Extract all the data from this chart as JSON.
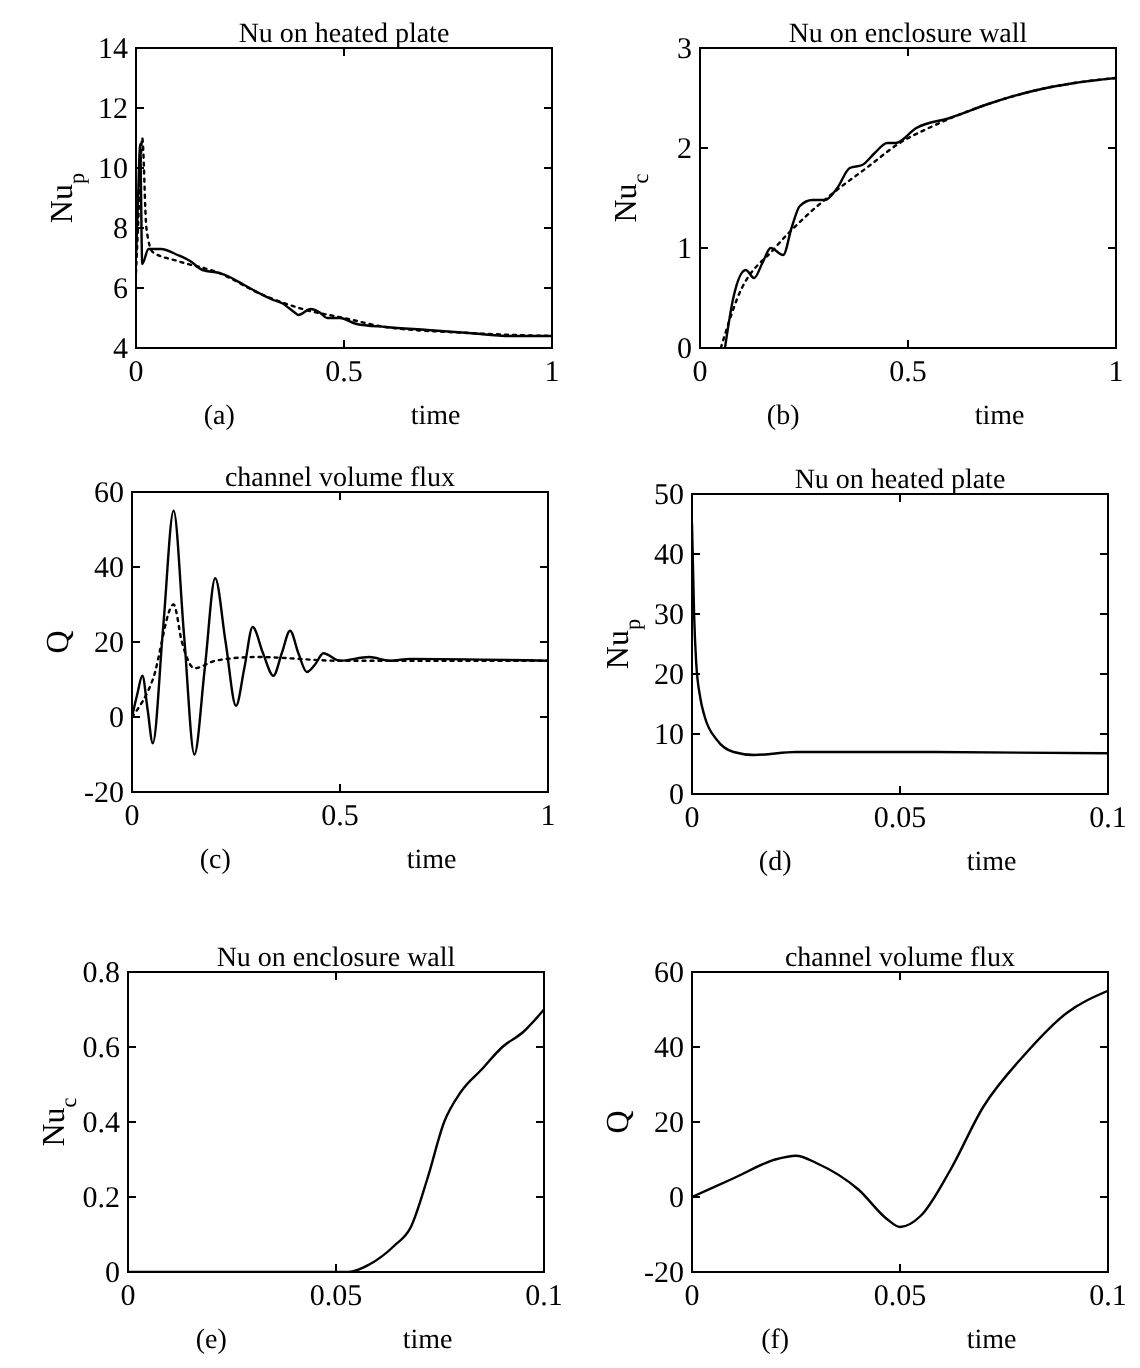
{
  "chart_data": [
    {
      "type": "line",
      "title": "Nu on heated plate",
      "xlabel": "time",
      "ylabel": "Nu$_{p}$",
      "annotations": [
        "(a)"
      ],
      "xlim": [
        0,
        1
      ],
      "ylim": [
        4,
        14
      ],
      "xticks": [
        0,
        0.5,
        1
      ],
      "yticks": [
        4,
        6,
        8,
        10,
        12,
        14
      ],
      "series": [
        {
          "color": "#000000",
          "line_style": "solid",
          "x": [
            0,
            0.005,
            0.01,
            0.015,
            0.03,
            0.06,
            0.1,
            0.13,
            0.16,
            0.2,
            0.22,
            0.26,
            0.3,
            0.33,
            0.35,
            0.38,
            0.39,
            0.42,
            0.44,
            0.46,
            0.49,
            0.53,
            0.6,
            0.7,
            0.8,
            0.9,
            1
          ],
          "values": [
            7,
            9,
            10.8,
            6.8,
            7.3,
            7.3,
            7.1,
            6.9,
            6.6,
            6.5,
            6.4,
            6.1,
            5.8,
            5.6,
            5.5,
            5.2,
            5.1,
            5.3,
            5.2,
            5.0,
            5.0,
            4.8,
            4.7,
            4.6,
            4.5,
            4.4,
            4.4
          ]
        },
        {
          "color": "#000000",
          "line_style": "dotted",
          "x": [
            0,
            0.008,
            0.015,
            0.025,
            0.04,
            0.1,
            0.2,
            0.3,
            0.4,
            0.5,
            0.6,
            0.8,
            1
          ],
          "values": [
            6.5,
            9,
            11,
            8,
            7.2,
            6.9,
            6.5,
            5.8,
            5.3,
            5.0,
            4.7,
            4.5,
            4.4
          ]
        }
      ]
    },
    {
      "type": "line",
      "title": "Nu on enclosure wall",
      "xlabel": "time",
      "ylabel": "Nu$_{c}$",
      "annotations": [
        "(b)"
      ],
      "xlim": [
        0,
        1
      ],
      "ylim": [
        0,
        3
      ],
      "xticks": [
        0,
        0.5,
        1
      ],
      "yticks": [
        0,
        1,
        2,
        3
      ],
      "series": [
        {
          "color": "#000000",
          "line_style": "solid",
          "x": [
            0.06,
            0.08,
            0.11,
            0.13,
            0.15,
            0.17,
            0.2,
            0.22,
            0.24,
            0.27,
            0.3,
            0.33,
            0.36,
            0.39,
            0.42,
            0.45,
            0.47,
            0.52,
            0.6,
            0.7,
            0.8,
            0.9,
            1
          ],
          "values": [
            0,
            0.5,
            0.78,
            0.7,
            0.85,
            1.0,
            0.93,
            1.2,
            1.42,
            1.48,
            1.48,
            1.6,
            1.8,
            1.83,
            1.95,
            2.05,
            2.05,
            2.2,
            2.3,
            2.45,
            2.57,
            2.65,
            2.7
          ]
        },
        {
          "color": "#000000",
          "line_style": "dotted",
          "x": [
            0.05,
            0.09,
            0.18,
            0.25,
            0.32,
            0.4,
            0.48,
            0.55,
            0.7,
            0.8,
            0.9,
            1
          ],
          "values": [
            0,
            0.5,
            1.0,
            1.3,
            1.55,
            1.8,
            2.05,
            2.2,
            2.45,
            2.57,
            2.65,
            2.7
          ]
        }
      ]
    },
    {
      "type": "line",
      "title": "channel volume flux",
      "xlabel": "time",
      "ylabel": "Q",
      "annotations": [
        "(c)"
      ],
      "xlim": [
        0,
        1
      ],
      "ylim": [
        -20,
        60
      ],
      "xticks": [
        0,
        0.5,
        1
      ],
      "yticks": [
        -20,
        0,
        20,
        40,
        60
      ],
      "series": [
        {
          "color": "#000000",
          "line_style": "solid",
          "x": [
            0,
            0.0125,
            0.025,
            0.0375,
            0.05,
            0.075,
            0.1,
            0.125,
            0.15,
            0.175,
            0.2,
            0.225,
            0.25,
            0.27,
            0.29,
            0.315,
            0.34,
            0.36,
            0.38,
            0.4,
            0.42,
            0.44,
            0.46,
            0.5,
            0.57,
            0.62,
            0.67,
            1
          ],
          "values": [
            0,
            6,
            11,
            2,
            -7,
            24,
            55,
            22,
            -10,
            13,
            37,
            20,
            3,
            13,
            24,
            17,
            11,
            17,
            23,
            17,
            12,
            14,
            17,
            15,
            16,
            15,
            15.5,
            15
          ]
        },
        {
          "color": "#000000",
          "line_style": "dotted",
          "x": [
            0,
            0.05,
            0.1,
            0.12,
            0.15,
            0.2,
            0.3,
            0.5,
            1
          ],
          "values": [
            0,
            10,
            30,
            20,
            13,
            15,
            16,
            15,
            15
          ]
        }
      ]
    },
    {
      "type": "line",
      "title": "Nu on heated plate",
      "xlabel": "time",
      "ylabel": "Nu$_{p}$",
      "annotations": [
        "(d)"
      ],
      "xlim": [
        0,
        0.1
      ],
      "ylim": [
        0,
        50
      ],
      "xticks": [
        0,
        0.05,
        0.1
      ],
      "yticks": [
        0,
        10,
        20,
        30,
        40,
        50
      ],
      "series": [
        {
          "color": "#000000",
          "line_style": "solid",
          "x": [
            0,
            0.0005,
            0.001,
            0.002,
            0.003,
            0.006,
            0.01,
            0.015,
            0.025,
            0.05,
            0.1
          ],
          "values": [
            45,
            30,
            22,
            16,
            13,
            9,
            7,
            6.5,
            7,
            7,
            6.8
          ]
        }
      ]
    },
    {
      "type": "line",
      "title": "Nu on enclosure wall",
      "xlabel": "time",
      "ylabel": "Nu$_{c}$",
      "annotations": [
        "(e)"
      ],
      "xlim": [
        0,
        0.1
      ],
      "ylim": [
        0,
        0.8
      ],
      "xticks": [
        0,
        0.05,
        0.1
      ],
      "yticks": [
        0,
        0.2,
        0.4,
        0.6,
        0.8
      ],
      "series": [
        {
          "color": "#000000",
          "line_style": "solid",
          "x": [
            0,
            0.053,
            0.058,
            0.064,
            0.068,
            0.072,
            0.076,
            0.08,
            0.085,
            0.09,
            0.095,
            0.1
          ],
          "values": [
            0,
            0,
            0.02,
            0.07,
            0.12,
            0.25,
            0.4,
            0.48,
            0.54,
            0.6,
            0.64,
            0.7
          ]
        }
      ]
    },
    {
      "type": "line",
      "title": "channel volume flux",
      "xlabel": "time",
      "ylabel": "Q",
      "annotations": [
        "(f)"
      ],
      "xlim": [
        0,
        0.1
      ],
      "ylim": [
        -20,
        60
      ],
      "xticks": [
        0,
        0.05,
        0.1
      ],
      "yticks": [
        -20,
        0,
        20,
        40,
        60
      ],
      "series": [
        {
          "color": "#000000",
          "line_style": "solid",
          "x": [
            0,
            0.01,
            0.02,
            0.025,
            0.03,
            0.04,
            0.047,
            0.05,
            0.055,
            0.062,
            0.07,
            0.08,
            0.09,
            0.1
          ],
          "values": [
            0,
            5,
            10,
            11,
            9,
            2,
            -6,
            -8,
            -5,
            7,
            24,
            38,
            49,
            55
          ]
        }
      ]
    }
  ]
}
